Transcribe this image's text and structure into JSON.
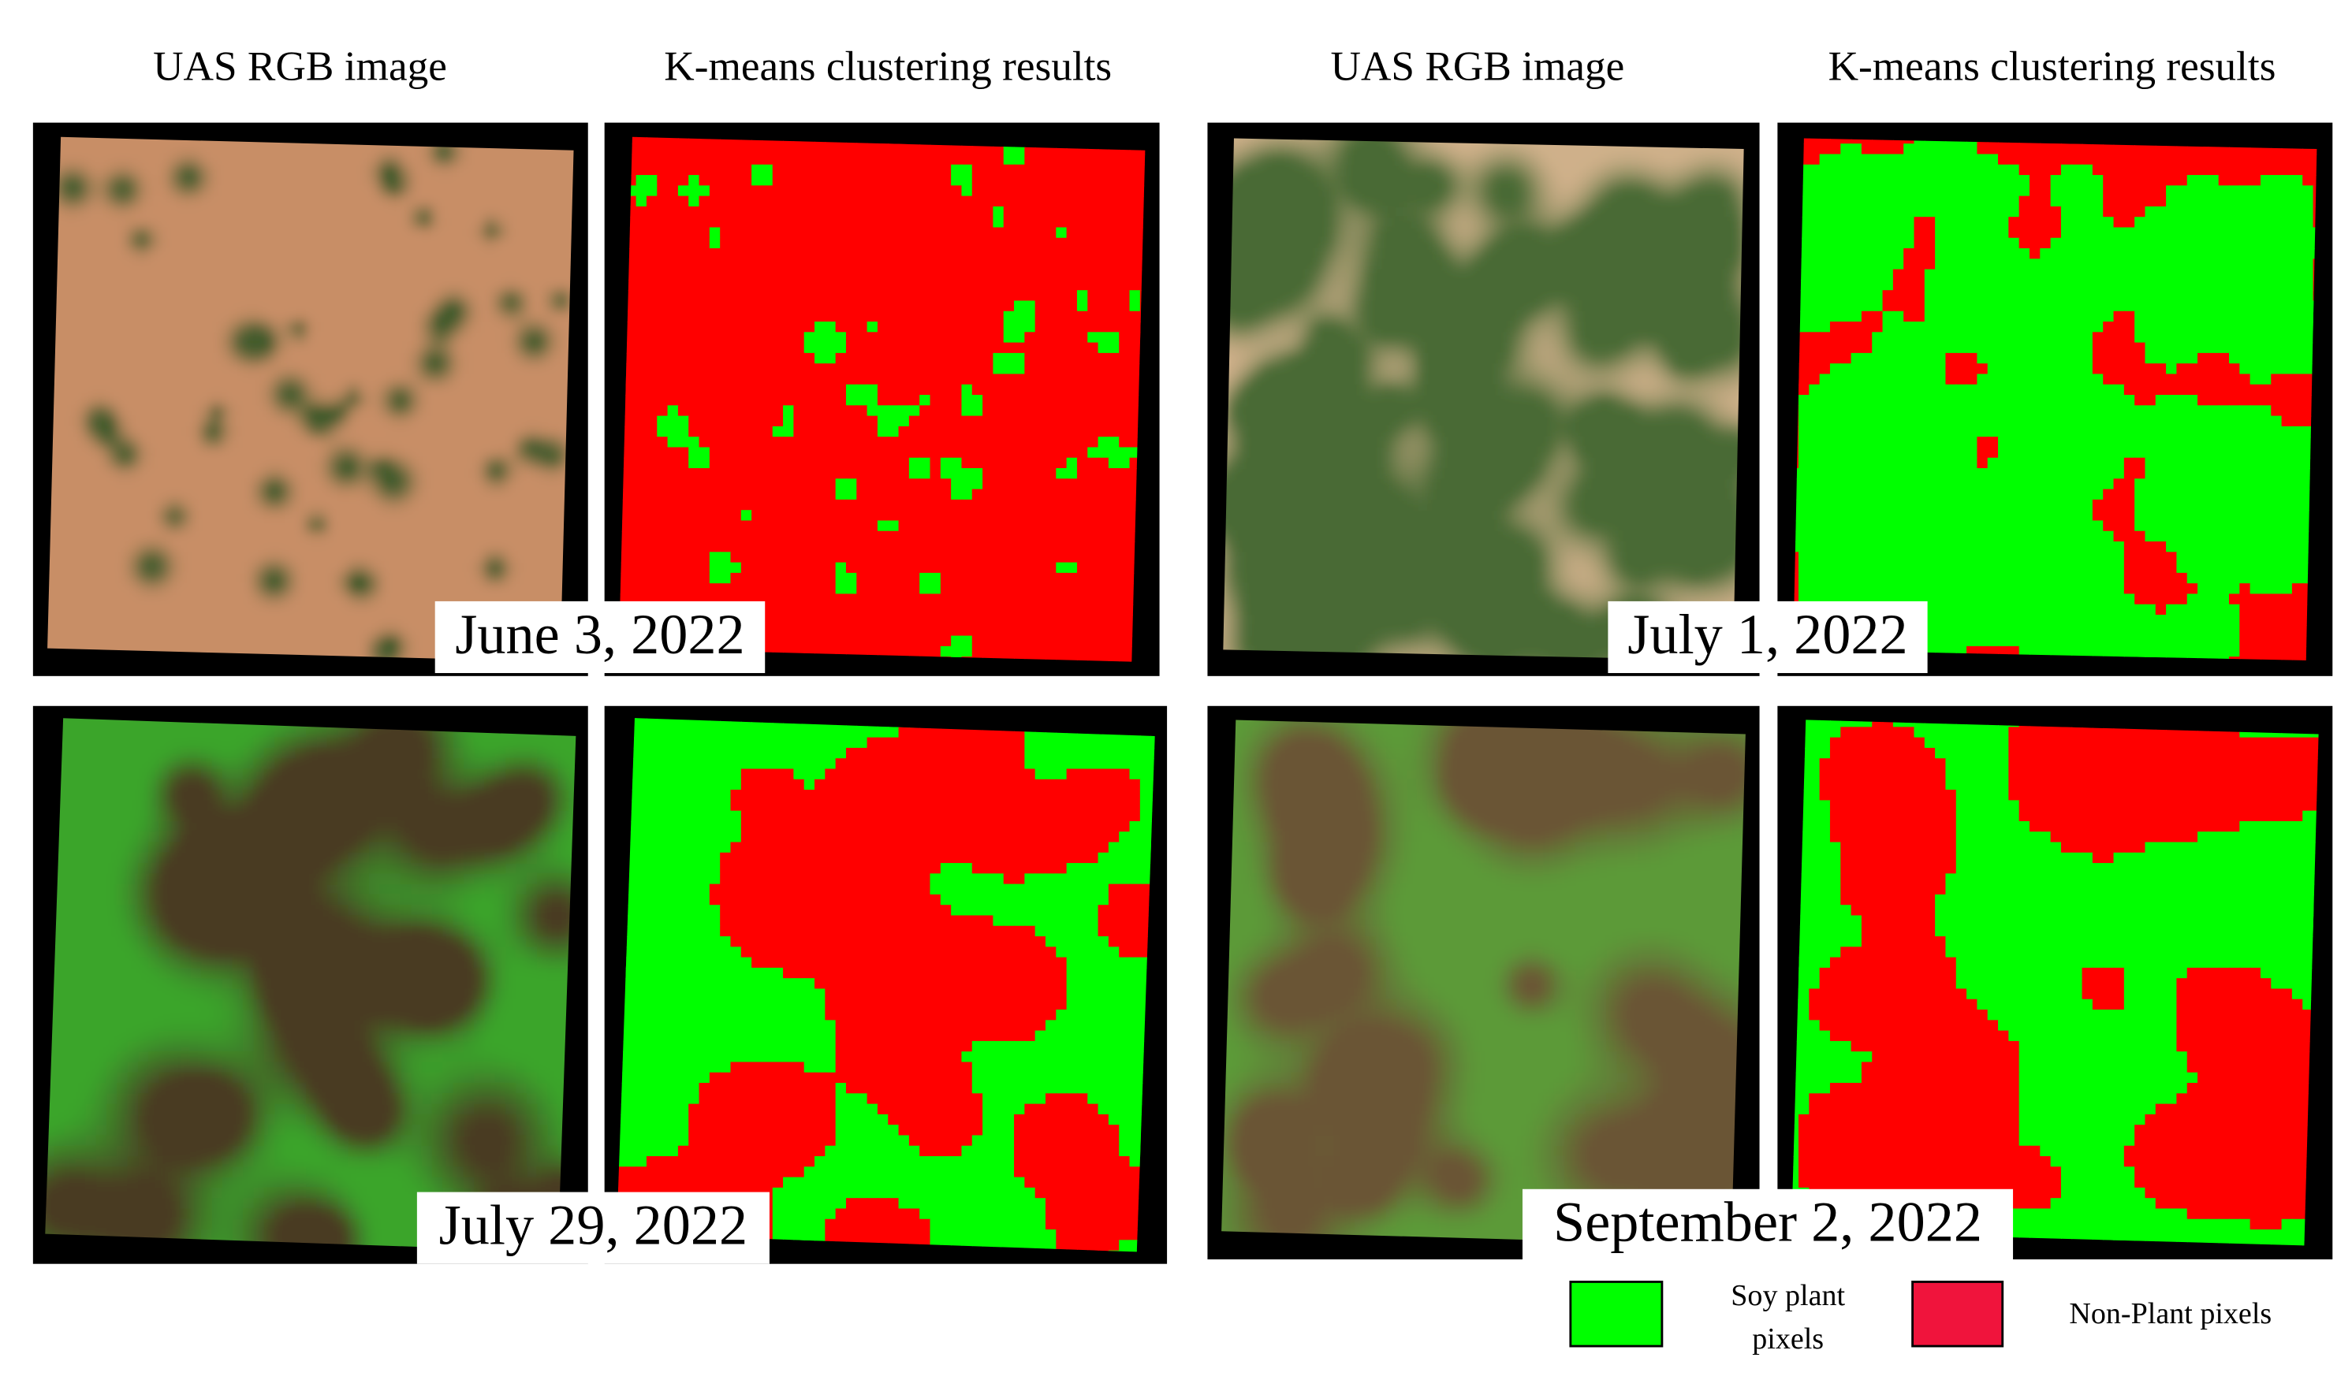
{
  "headers": [
    "UAS RGB image",
    "K-means clustering results",
    "UAS RGB image",
    "K-means clustering results"
  ],
  "dates": [
    "June 3, 2022",
    "July 1, 2022",
    "July 29, 2022",
    "September 2, 2022"
  ],
  "legend": {
    "plant": [
      "Soy plant",
      "pixels"
    ],
    "non_plant": "Non-Plant pixels"
  }
}
